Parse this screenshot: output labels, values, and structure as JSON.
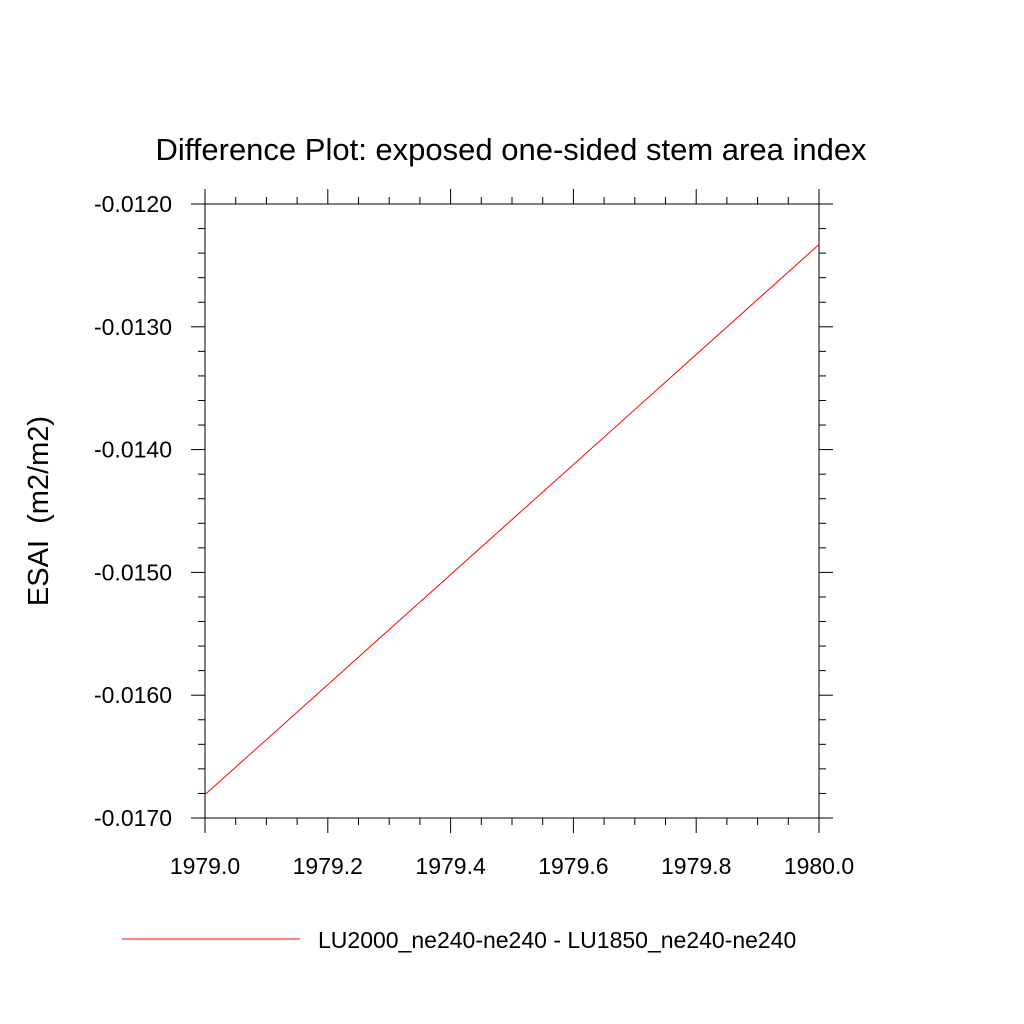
{
  "chart_data": {
    "type": "line",
    "title": "Difference Plot: exposed one-sided stem area index",
    "xlabel": "",
    "ylabel": "ESAI  (m2/m2)",
    "xlim": [
      1979.0,
      1980.0
    ],
    "ylim": [
      -0.017,
      -0.012
    ],
    "x_ticks": [
      "1979.0",
      "1979.2",
      "1979.4",
      "1979.6",
      "1979.8",
      "1980.0"
    ],
    "y_ticks": [
      "-0.0170",
      "-0.0160",
      "-0.0150",
      "-0.0140",
      "-0.0130",
      "-0.0120"
    ],
    "grid": false,
    "legend_position": "bottom",
    "series": [
      {
        "name": "LU2000_ne240-ne240 - LU1850_ne240-ne240",
        "color": "#ff0000",
        "x": [
          1979.0,
          1980.0
        ],
        "y": [
          -0.01681,
          -0.01233
        ]
      }
    ]
  }
}
